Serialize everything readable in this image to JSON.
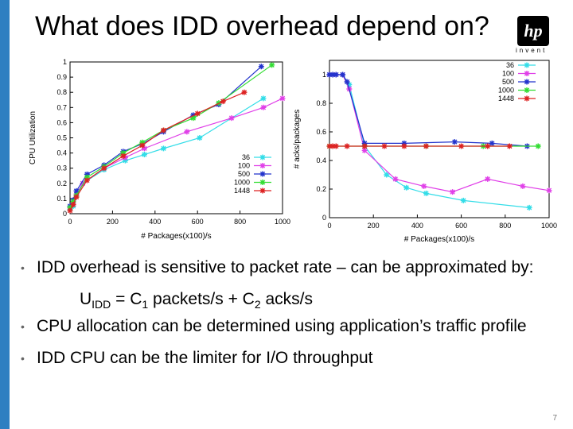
{
  "slide": {
    "title": "What does IDD overhead depend on?",
    "logo_text": "hp",
    "logo_tagline": "invent",
    "page_number": "7",
    "accent_color": "#2e7fc1"
  },
  "bullets": {
    "b1": "IDD overhead is sensitive to packet rate – can be approximated by:",
    "formula": {
      "u": "U",
      "u_sub": "IDD",
      "eq": " = C",
      "c1_sub": "1",
      "mid": " packets/s + C",
      "c2_sub": "2",
      "end": " acks/s"
    },
    "b2": "CPU allocation can be determined using application’s traffic profile",
    "b3": "IDD CPU can be the limiter for I/O throughput"
  },
  "chart_data": [
    {
      "type": "line",
      "xlabel": "# Packages(x100)/s",
      "ylabel": "CPU Utilization",
      "xlim": [
        0,
        1000
      ],
      "ylim": [
        0,
        1
      ],
      "xticks": [
        "0",
        "200",
        "400",
        "600",
        "800",
        "1000"
      ],
      "yticks": [
        "0",
        "0.1",
        "0.2",
        "0.3",
        "0.4",
        "0.5",
        "0.6",
        "0.7",
        "0.8",
        "0.9",
        "1"
      ],
      "legend": "bottom-right",
      "grid": false,
      "series": [
        {
          "name": "36",
          "color": "#33dde8",
          "x": [
            0,
            15,
            30,
            60,
            160,
            260,
            350,
            440,
            610,
            910
          ],
          "y": [
            0.03,
            0.05,
            0.12,
            0.2,
            0.29,
            0.35,
            0.39,
            0.43,
            0.5,
            0.76
          ]
        },
        {
          "name": "100",
          "color": "#e040e8",
          "x": [
            0,
            15,
            30,
            60,
            160,
            260,
            350,
            550,
            760,
            910,
            1000
          ],
          "y": [
            0.04,
            0.07,
            0.13,
            0.2,
            0.3,
            0.37,
            0.43,
            0.54,
            0.63,
            0.7,
            0.76
          ]
        },
        {
          "name": "500",
          "color": "#2233cc",
          "x": [
            0,
            15,
            30,
            80,
            160,
            250,
            340,
            440,
            580,
            700,
            900
          ],
          "y": [
            0.05,
            0.09,
            0.15,
            0.26,
            0.32,
            0.41,
            0.46,
            0.54,
            0.65,
            0.72,
            0.97
          ]
        },
        {
          "name": "1000",
          "color": "#33dd33",
          "x": [
            0,
            15,
            30,
            80,
            160,
            250,
            340,
            440,
            580,
            700,
            950
          ],
          "y": [
            0.04,
            0.08,
            0.12,
            0.24,
            0.31,
            0.4,
            0.47,
            0.55,
            0.63,
            0.73,
            0.98
          ]
        },
        {
          "name": "1448",
          "color": "#dd2222",
          "x": [
            0,
            15,
            30,
            80,
            160,
            250,
            340,
            440,
            600,
            720,
            820
          ],
          "y": [
            0.02,
            0.06,
            0.11,
            0.22,
            0.3,
            0.38,
            0.45,
            0.55,
            0.66,
            0.74,
            0.8
          ]
        }
      ]
    },
    {
      "type": "line",
      "xlabel": "# Packages(x100)/s",
      "ylabel": "# acks/packages",
      "xlim": [
        0,
        1000
      ],
      "ylim": [
        0,
        1.1
      ],
      "xticks": [
        "0",
        "200",
        "400",
        "600",
        "800",
        "1000"
      ],
      "yticks": [
        "0",
        "0.2",
        "0.4",
        "0.6",
        "0.8",
        "1"
      ],
      "legend": "top-right",
      "grid": false,
      "series": [
        {
          "name": "36",
          "color": "#33dde8",
          "x": [
            0,
            15,
            30,
            60,
            90,
            160,
            260,
            350,
            440,
            610,
            910
          ],
          "y": [
            1,
            1,
            1,
            1,
            0.93,
            0.5,
            0.3,
            0.21,
            0.17,
            0.12,
            0.07
          ]
        },
        {
          "name": "100",
          "color": "#e040e8",
          "x": [
            0,
            15,
            30,
            60,
            90,
            160,
            300,
            430,
            560,
            720,
            880,
            1000
          ],
          "y": [
            1,
            1,
            1,
            1,
            0.9,
            0.47,
            0.27,
            0.22,
            0.18,
            0.27,
            0.22,
            0.19
          ]
        },
        {
          "name": "500",
          "color": "#2233cc",
          "x": [
            0,
            15,
            30,
            60,
            80,
            160,
            340,
            570,
            740,
            900
          ],
          "y": [
            1,
            1,
            1,
            1,
            0.95,
            0.52,
            0.52,
            0.53,
            0.52,
            0.5
          ]
        },
        {
          "name": "1000",
          "color": "#33dd33",
          "x": [
            0,
            160,
            440,
            700,
            950
          ],
          "y": [
            0.5,
            0.5,
            0.5,
            0.5,
            0.5
          ]
        },
        {
          "name": "1448",
          "color": "#dd2222",
          "x": [
            0,
            15,
            30,
            80,
            160,
            250,
            340,
            440,
            600,
            720,
            820
          ],
          "y": [
            0.5,
            0.5,
            0.5,
            0.5,
            0.5,
            0.5,
            0.5,
            0.5,
            0.5,
            0.5,
            0.5
          ]
        }
      ]
    }
  ]
}
